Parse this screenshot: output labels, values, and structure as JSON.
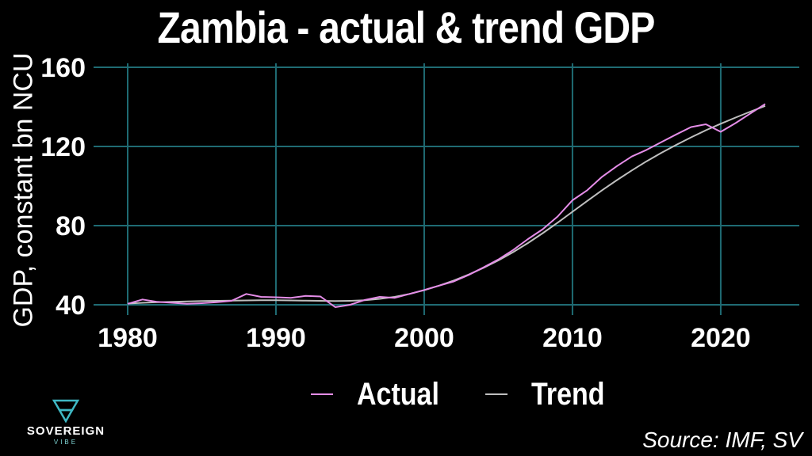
{
  "colors": {
    "background": "#000000",
    "grid": "#1f6b73",
    "actual": "#e58de8",
    "trend": "#bfbfbf",
    "text": "#ffffff",
    "brand": "#3fb8c4"
  },
  "logo": {
    "name": "SOVEREIGN",
    "sub": "VIBE",
    "icon": "sovereign-vibe-logo-icon"
  },
  "source": "Source: IMF, SV",
  "chart_data": {
    "type": "line",
    "title": "Zambia - actual & trend GDP",
    "xlabel": "",
    "ylabel": "GDP, constant bn NCU",
    "xlim": [
      1980,
      2023
    ],
    "ylim": [
      40,
      160
    ],
    "x_ticks": [
      1980,
      1990,
      2000,
      2010,
      2020
    ],
    "y_ticks": [
      40,
      80,
      120,
      160
    ],
    "grid": true,
    "legend_position": "bottom",
    "x": [
      1980,
      1981,
      1982,
      1983,
      1984,
      1985,
      1986,
      1987,
      1988,
      1989,
      1990,
      1991,
      1992,
      1993,
      1994,
      1995,
      1996,
      1997,
      1998,
      1999,
      2000,
      2001,
      2002,
      2003,
      2004,
      2005,
      2006,
      2007,
      2008,
      2009,
      2010,
      2011,
      2012,
      2013,
      2014,
      2015,
      2016,
      2017,
      2018,
      2019,
      2020,
      2021,
      2022,
      2023
    ],
    "series": [
      {
        "name": "Actual",
        "values": [
          40.5,
          42.7,
          41.5,
          41.0,
          40.5,
          40.8,
          41.3,
          42.0,
          45.5,
          44.0,
          43.8,
          43.5,
          44.5,
          44.2,
          38.8,
          40.0,
          42.5,
          44.0,
          43.5,
          45.5,
          47.5,
          49.7,
          51.8,
          55.1,
          58.9,
          62.9,
          67.7,
          73.2,
          78.2,
          84.6,
          92.8,
          97.9,
          104.7,
          110.1,
          114.9,
          118.3,
          122.2,
          126.1,
          129.8,
          131.2,
          127.4,
          131.8,
          136.7,
          141.5
        ]
      },
      {
        "name": "Trend",
        "values": [
          40.6,
          41.0,
          41.3,
          41.5,
          41.7,
          41.9,
          42.0,
          42.1,
          42.2,
          42.3,
          42.3,
          42.2,
          42.1,
          42.0,
          41.9,
          42.0,
          42.3,
          43.0,
          44.0,
          45.5,
          47.4,
          49.7,
          52.3,
          55.3,
          58.7,
          62.4,
          66.6,
          71.2,
          76.2,
          81.5,
          87.0,
          92.5,
          97.9,
          103.0,
          107.9,
          112.5,
          116.8,
          120.8,
          124.6,
          128.2,
          131.5,
          134.6,
          137.6,
          140.5
        ]
      }
    ]
  }
}
